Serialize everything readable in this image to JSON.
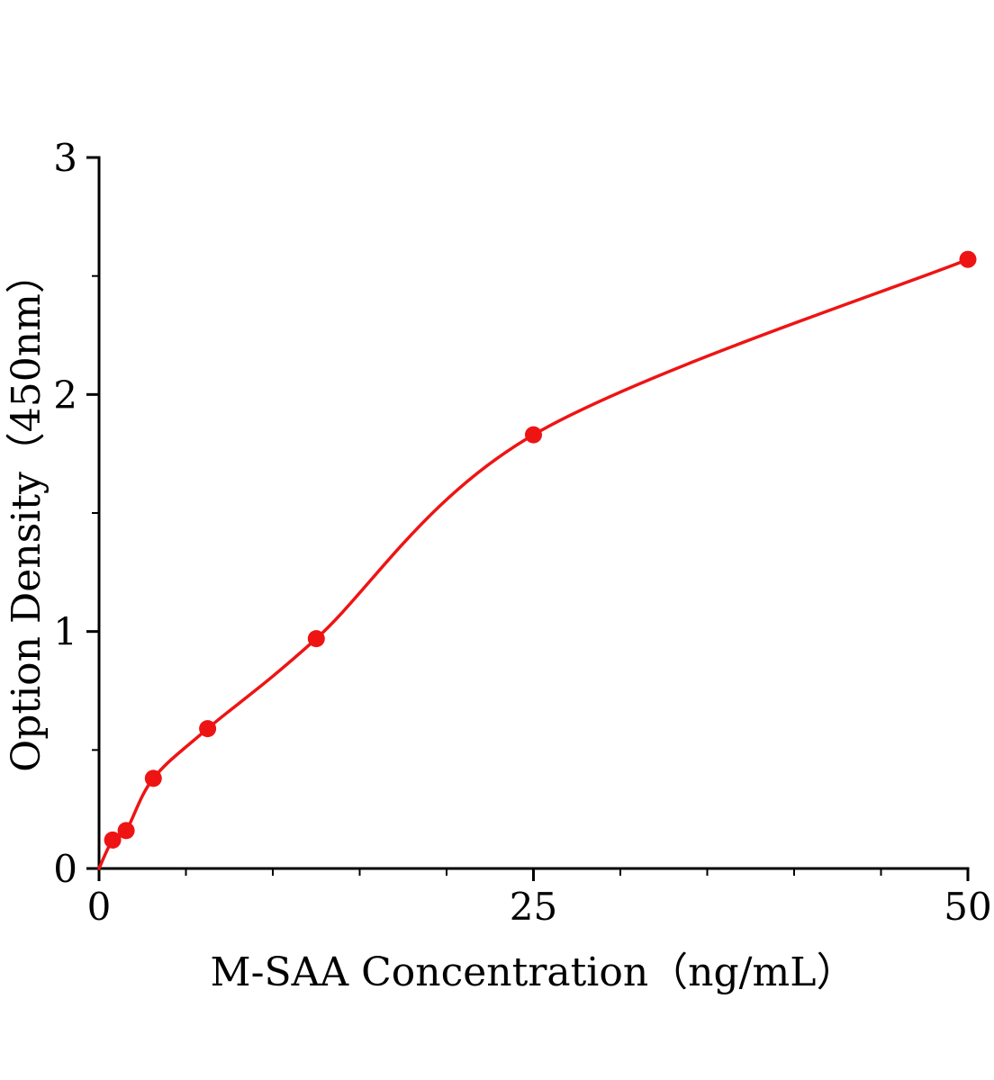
{
  "figure": {
    "background": "#ffffff",
    "description": "ELISA standard curve scatter plot with fitted curve"
  },
  "chart_data": {
    "type": "scatter",
    "title": "",
    "xlabel": "M-SAA Concentration（ng/mL）",
    "ylabel": "Option Density（450nm）",
    "x": [
      0.78,
      1.56,
      3.125,
      6.25,
      12.5,
      25,
      50
    ],
    "y": [
      0.12,
      0.16,
      0.38,
      0.59,
      0.97,
      1.83,
      2.57
    ],
    "curve_starts_at_origin": true,
    "xlim": [
      0,
      50
    ],
    "ylim": [
      0,
      3
    ],
    "x_major_ticks": [
      0,
      25,
      50
    ],
    "x_tick_labels": [
      "0",
      "25",
      "50"
    ],
    "y_major_ticks": [
      0,
      1,
      2,
      3
    ],
    "y_tick_labels": [
      "0",
      "1",
      "2",
      "3"
    ],
    "x_minor_step": 5,
    "y_minor_step": 0.5,
    "grid": false,
    "legend_position": "none",
    "point_color": "#ee1414",
    "curve_color": "#ee1414",
    "axis_color": "#000000"
  }
}
